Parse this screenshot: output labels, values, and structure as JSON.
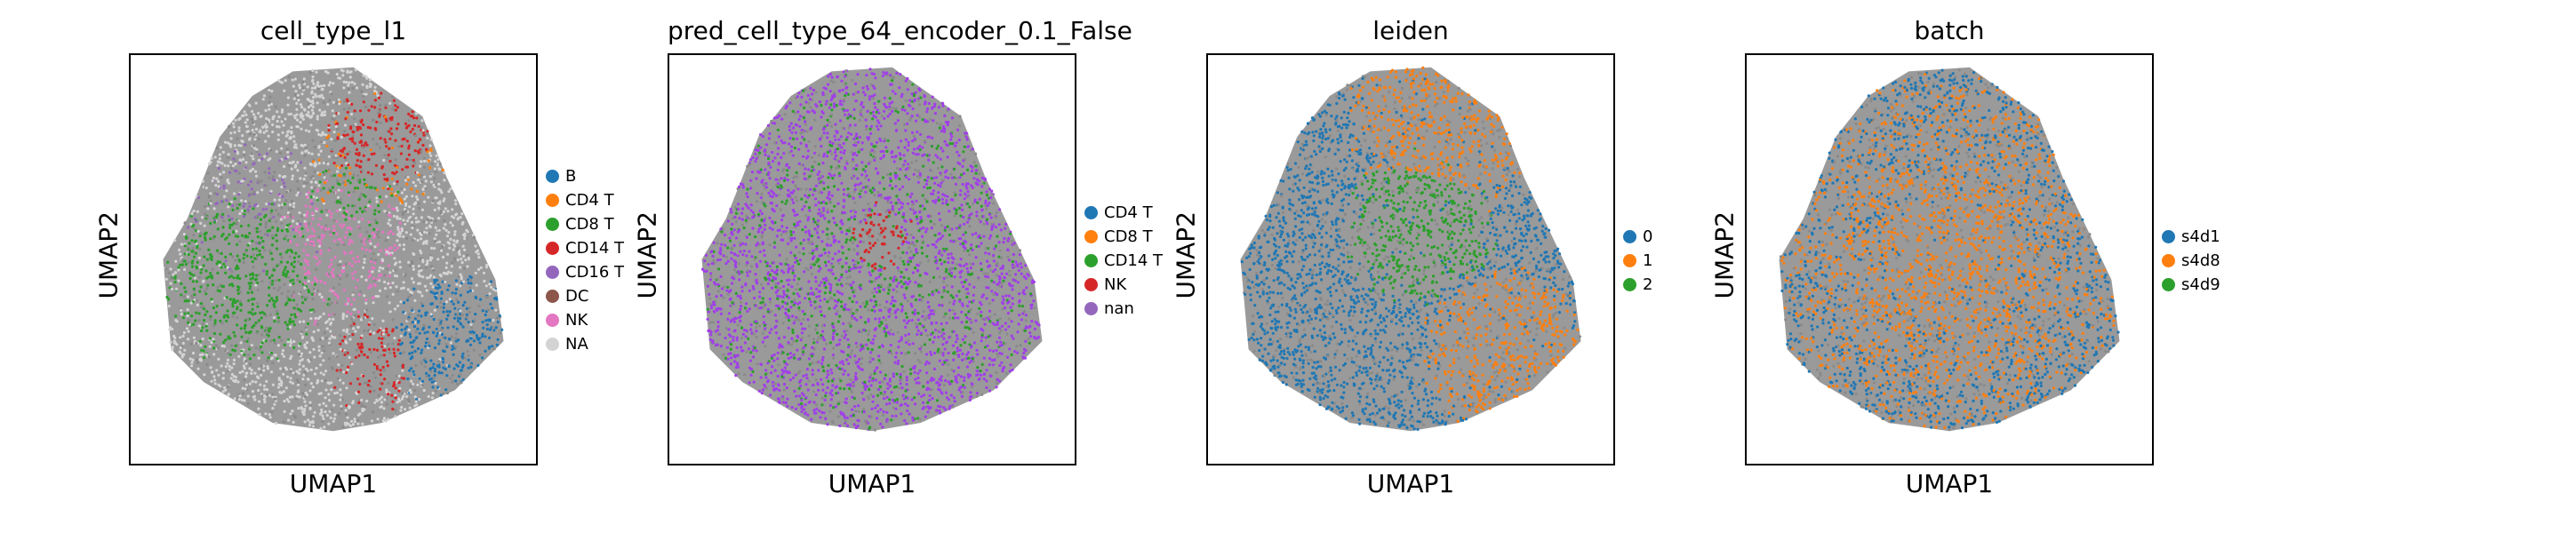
{
  "chart_data": [
    {
      "type": "scatter",
      "title": "cell_type_l1",
      "xlabel": "UMAP1",
      "ylabel": "UMAP2",
      "legend_position": "right",
      "grid": false,
      "categories": [
        "B",
        "CD4 T",
        "CD8 T",
        "CD14 T",
        "CD16 T",
        "DC",
        "NK",
        "NA"
      ],
      "colors": [
        "#1f77b4",
        "#ff7f0e",
        "#2ca02c",
        "#d62728",
        "#9467bd",
        "#8c564b",
        "#e377c2",
        "#d3d3d3"
      ],
      "base_color": "#d3d3d3",
      "regions": [
        {
          "category": "CD8 T",
          "cx": 0.28,
          "cy": 0.55,
          "r": 0.22,
          "density": 2.4
        },
        {
          "category": "CD8 T",
          "cx": 0.55,
          "cy": 0.35,
          "r": 0.12,
          "density": 1.2
        },
        {
          "category": "CD14 T",
          "cx": 0.62,
          "cy": 0.2,
          "r": 0.14,
          "density": 2.5
        },
        {
          "category": "CD14 T",
          "cx": 0.6,
          "cy": 0.75,
          "r": 0.13,
          "density": 1.3
        },
        {
          "category": "B",
          "cx": 0.8,
          "cy": 0.7,
          "r": 0.18,
          "density": 2.6
        },
        {
          "category": "NK",
          "cx": 0.5,
          "cy": 0.48,
          "r": 0.2,
          "density": 1.4
        },
        {
          "category": "CD4 T",
          "cx": 0.6,
          "cy": 0.25,
          "r": 0.18,
          "density": 0.9
        },
        {
          "category": "CD16 T",
          "cx": 0.3,
          "cy": 0.4,
          "r": 0.2,
          "density": 0.7
        }
      ]
    },
    {
      "type": "scatter",
      "title": "pred_cell_type_64_encoder_0.1_False",
      "xlabel": "UMAP1",
      "ylabel": "UMAP2",
      "legend_position": "right",
      "grid": false,
      "categories": [
        "CD4 T",
        "CD8 T",
        "CD14 T",
        "NK",
        "nan"
      ],
      "colors": [
        "#1f77b4",
        "#ff7f0e",
        "#2ca02c",
        "#d62728",
        "#9467bd"
      ],
      "base_color": "#a03fe8",
      "regions": [
        {
          "category": "NK",
          "cx": 0.52,
          "cy": 0.45,
          "r": 0.1,
          "density": 1.5
        },
        {
          "category": "CD14 T",
          "cx": 0.5,
          "cy": 0.5,
          "r": 0.5,
          "density": 0.5
        }
      ]
    },
    {
      "type": "scatter",
      "title": "leiden",
      "xlabel": "UMAP1",
      "ylabel": "UMAP2",
      "legend_position": "right",
      "grid": false,
      "categories": [
        "0",
        "1",
        "2"
      ],
      "colors": [
        "#1f77b4",
        "#ff7f0e",
        "#2ca02c"
      ],
      "base_color": "#1f77b4",
      "regions": [
        {
          "category": "1",
          "cx": 0.6,
          "cy": 0.12,
          "r": 0.28,
          "density": 3.0
        },
        {
          "category": "1",
          "cx": 0.74,
          "cy": 0.72,
          "r": 0.22,
          "density": 3.0
        },
        {
          "category": "2",
          "cx": 0.52,
          "cy": 0.42,
          "r": 0.2,
          "density": 3.0
        }
      ]
    },
    {
      "type": "scatter",
      "title": "batch",
      "xlabel": "UMAP1",
      "ylabel": "UMAP2",
      "legend_position": "right",
      "grid": false,
      "categories": [
        "s4d1",
        "s4d8",
        "s4d9"
      ],
      "colors": [
        "#1f77b4",
        "#ff7f0e",
        "#2ca02c"
      ],
      "base_color": "#1f77b4",
      "regions": [
        {
          "category": "s4d8",
          "cx": 0.5,
          "cy": 0.5,
          "r": 0.6,
          "density": 1.1
        }
      ]
    }
  ]
}
